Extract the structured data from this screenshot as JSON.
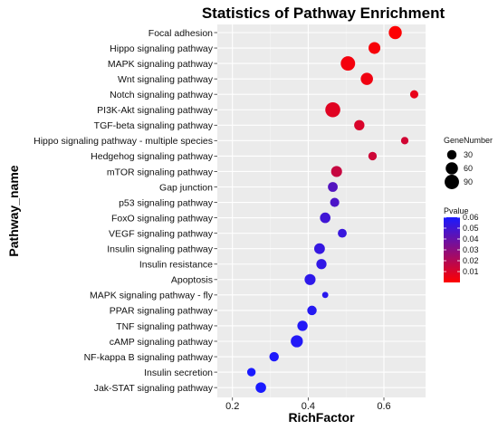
{
  "chart_data": {
    "type": "scatter",
    "title": "Statistics of Pathway Enrichment",
    "xlabel": "RichFactor",
    "ylabel": "Pathway_name",
    "xlim": [
      0.16,
      0.71
    ],
    "xticks": [
      0.2,
      0.4,
      0.6
    ],
    "xtick_labels": [
      "0.2",
      "0.4",
      "0.6"
    ],
    "grid": true,
    "size_legend": {
      "title": "GeneNumber",
      "placement": "right",
      "entries": [
        {
          "label": "30",
          "value": 30
        },
        {
          "label": "60",
          "value": 60
        },
        {
          "label": "90",
          "value": 90
        }
      ]
    },
    "color_legend": {
      "title": "Pvalue",
      "placement": "right",
      "min": 0.0,
      "max": 0.06,
      "low_color": "#ff0000",
      "high_color": "#1a1aff",
      "ticks": [
        {
          "label": "0.06",
          "value": 0.06
        },
        {
          "label": "0.05",
          "value": 0.05
        },
        {
          "label": "0.04",
          "value": 0.04
        },
        {
          "label": "0.03",
          "value": 0.03
        },
        {
          "label": "0.02",
          "value": 0.02
        },
        {
          "label": "0.01",
          "value": 0.01
        }
      ]
    },
    "points": [
      {
        "pathway": "Focal adhesion",
        "rich_factor": 0.63,
        "gene_number": 70,
        "pvalue": 0.0005
      },
      {
        "pathway": "Hippo signaling pathway",
        "rich_factor": 0.575,
        "gene_number": 55,
        "pvalue": 0.002
      },
      {
        "pathway": "MAPK signaling pathway",
        "rich_factor": 0.505,
        "gene_number": 90,
        "pvalue": 0.003
      },
      {
        "pathway": "Wnt signaling pathway",
        "rich_factor": 0.555,
        "gene_number": 60,
        "pvalue": 0.004
      },
      {
        "pathway": "Notch signaling pathway",
        "rich_factor": 0.68,
        "gene_number": 20,
        "pvalue": 0.006
      },
      {
        "pathway": "PI3K-Akt signaling pathway",
        "rich_factor": 0.465,
        "gene_number": 100,
        "pvalue": 0.008
      },
      {
        "pathway": "TGF-beta signaling pathway",
        "rich_factor": 0.535,
        "gene_number": 38,
        "pvalue": 0.01
      },
      {
        "pathway": "Hippo signaling pathway - multiple species",
        "rich_factor": 0.655,
        "gene_number": 15,
        "pvalue": 0.012
      },
      {
        "pathway": "Hedgehog signaling pathway",
        "rich_factor": 0.57,
        "gene_number": 22,
        "pvalue": 0.013
      },
      {
        "pathway": "mTOR signaling pathway",
        "rich_factor": 0.475,
        "gene_number": 45,
        "pvalue": 0.015
      },
      {
        "pathway": "Gap junction",
        "rich_factor": 0.465,
        "gene_number": 33,
        "pvalue": 0.045
      },
      {
        "pathway": "p53 signaling pathway",
        "rich_factor": 0.47,
        "gene_number": 28,
        "pvalue": 0.047
      },
      {
        "pathway": "FoxO signaling pathway",
        "rich_factor": 0.445,
        "gene_number": 40,
        "pvalue": 0.05
      },
      {
        "pathway": "VEGF signaling pathway",
        "rich_factor": 0.49,
        "gene_number": 25,
        "pvalue": 0.052
      },
      {
        "pathway": "Insulin signaling pathway",
        "rich_factor": 0.43,
        "gene_number": 42,
        "pvalue": 0.053
      },
      {
        "pathway": "Insulin resistance",
        "rich_factor": 0.435,
        "gene_number": 37,
        "pvalue": 0.054
      },
      {
        "pathway": "Apoptosis",
        "rich_factor": 0.405,
        "gene_number": 45,
        "pvalue": 0.055
      },
      {
        "pathway": "MAPK signaling pathway - fly",
        "rich_factor": 0.445,
        "gene_number": 8,
        "pvalue": 0.056
      },
      {
        "pathway": "PPAR signaling pathway",
        "rich_factor": 0.41,
        "gene_number": 30,
        "pvalue": 0.057
      },
      {
        "pathway": "TNF signaling pathway",
        "rich_factor": 0.385,
        "gene_number": 38,
        "pvalue": 0.058
      },
      {
        "pathway": "cAMP signaling pathway",
        "rich_factor": 0.37,
        "gene_number": 58,
        "pvalue": 0.058
      },
      {
        "pathway": "NF-kappa B signaling pathway",
        "rich_factor": 0.31,
        "gene_number": 30,
        "pvalue": 0.059
      },
      {
        "pathway": "Insulin secretion",
        "rich_factor": 0.25,
        "gene_number": 22,
        "pvalue": 0.06
      },
      {
        "pathway": "Jak-STAT signaling pathway",
        "rich_factor": 0.275,
        "gene_number": 40,
        "pvalue": 0.06
      }
    ]
  }
}
